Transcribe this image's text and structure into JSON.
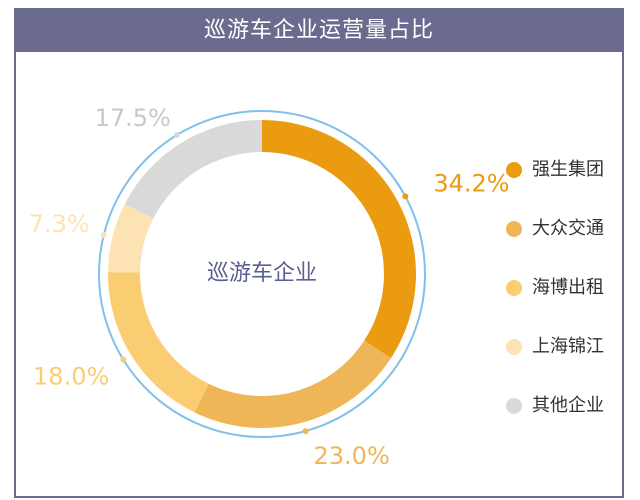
{
  "title": "巡游车企业运营量占比",
  "chart_data": {
    "type": "pie",
    "variant": "donut",
    "center_label": "巡游车企业",
    "legend_position": "right",
    "slices": [
      {
        "label": "强生集团",
        "value": 34.2,
        "display": "34.2%",
        "color": "#eb9b0f"
      },
      {
        "label": "大众交通",
        "value": 23.0,
        "display": "23.0%",
        "color": "#eeb656"
      },
      {
        "label": "海博出租",
        "value": 18.0,
        "display": "18.0%",
        "color": "#fbcd72"
      },
      {
        "label": "上海锦江",
        "value": 7.3,
        "display": "7.3%",
        "color": "#fde3b4"
      },
      {
        "label": "其他企业",
        "value": 17.5,
        "display": "17.5%",
        "color": "#d9d9d9"
      }
    ],
    "outer_ring_color": "#7fc0ec",
    "center_label_color": "#5b5f8f"
  }
}
